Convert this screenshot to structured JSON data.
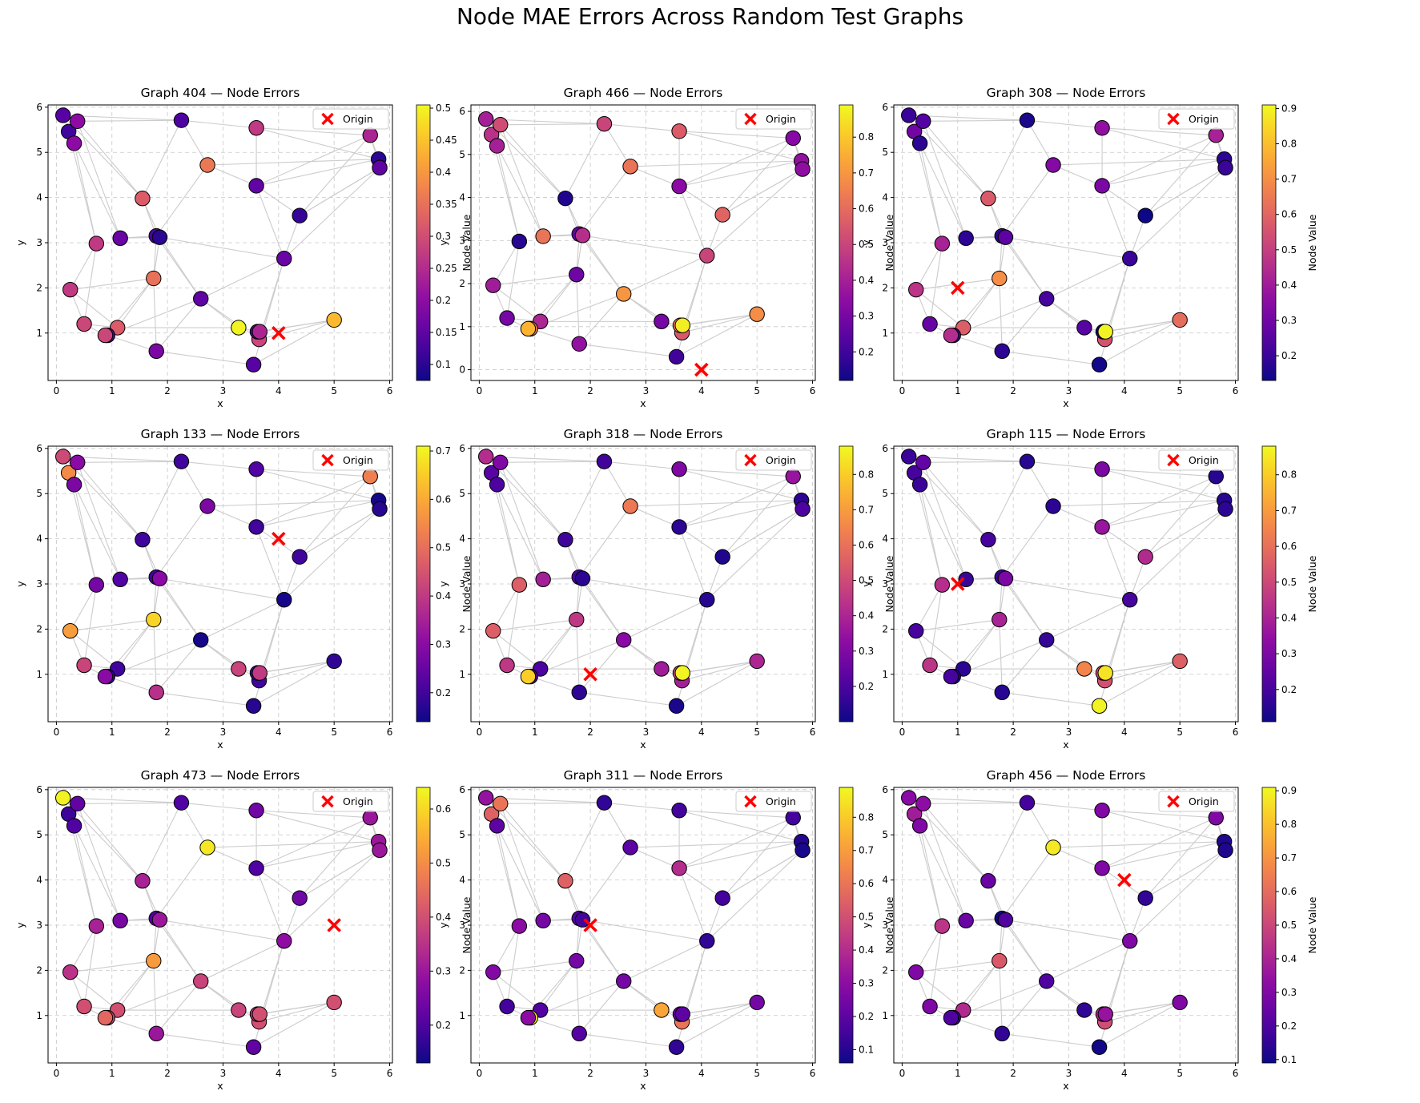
{
  "figure": {
    "title": "Node MAE Errors Across Random Test Graphs"
  },
  "colors": {
    "edge": "#cccccc",
    "grid": "#b0b0b0",
    "origin_marker": "#ff0000",
    "node_outline": "#000000",
    "colormap": "plasma"
  },
  "chart_data": [
    {
      "type": "scatter",
      "title": "Graph 404 — Node Errors",
      "xlabel": "x",
      "ylabel": "y",
      "xlim": [
        -0.15,
        6.05
      ],
      "ylim": [
        -0.05,
        6.05
      ],
      "xticks": [
        0,
        1,
        2,
        3,
        4,
        5,
        6
      ],
      "yticks": [
        1,
        2,
        3,
        4,
        5,
        6
      ],
      "grid": true,
      "legend": {
        "label": "Origin",
        "placement": "top-right"
      },
      "origin": [
        4,
        1
      ],
      "colorbar": {
        "label": "Node Value",
        "range": [
          0.075,
          0.505
        ],
        "ticks": [
          0.1,
          0.15,
          0.2,
          0.25,
          0.3,
          0.35,
          0.4,
          0.45,
          0.5
        ]
      },
      "node_values": [
        0.14,
        0.12,
        0.2,
        0.2,
        0.13,
        0.27,
        0.24,
        0.1,
        0.15,
        0.36,
        0.32,
        0.15,
        0.11,
        0.16,
        0.27,
        0.13,
        0.1,
        0.27,
        0.35,
        0.16,
        0.15,
        0.29,
        0.32,
        0.12,
        0.18,
        0.5,
        0.29,
        0.14,
        0.14,
        0.44,
        0.29,
        0.24
      ]
    },
    {
      "type": "scatter",
      "title": "Graph 466 — Node Errors",
      "xlabel": "x",
      "ylabel": "y",
      "xlim": [
        -0.15,
        6.05
      ],
      "ylim": [
        -0.25,
        6.15
      ],
      "xticks": [
        0,
        1,
        2,
        3,
        4,
        5,
        6
      ],
      "yticks": [
        0,
        1,
        2,
        3,
        4,
        5,
        6
      ],
      "grid": true,
      "legend": {
        "label": "Origin",
        "placement": "top-right"
      },
      "origin": [
        4,
        0
      ],
      "colorbar": {
        "label": "Node Value",
        "range": [
          0.12,
          0.89
        ],
        "ticks": [
          0.2,
          0.3,
          0.4,
          0.5,
          0.6,
          0.7,
          0.8
        ]
      },
      "node_values": [
        0.4,
        0.45,
        0.52,
        0.4,
        0.5,
        0.56,
        0.33,
        0.36,
        0.35,
        0.62,
        0.15,
        0.34,
        0.58,
        0.62,
        0.16,
        0.26,
        0.44,
        0.39,
        0.28,
        0.5,
        0.7,
        0.3,
        0.42,
        0.64,
        0.36,
        0.3,
        0.55,
        0.62,
        0.2,
        0.68,
        0.76,
        0.87
      ]
    },
    {
      "type": "scatter",
      "title": "Graph 308 — Node Errors",
      "xlabel": "x",
      "ylabel": "y",
      "xlim": [
        -0.15,
        6.05
      ],
      "ylim": [
        -0.05,
        6.05
      ],
      "xticks": [
        0,
        1,
        2,
        3,
        4,
        5,
        6
      ],
      "yticks": [
        1,
        2,
        3,
        4,
        5,
        6
      ],
      "grid": true,
      "legend": {
        "label": "Origin",
        "placement": "top-right"
      },
      "origin": [
        1,
        2
      ],
      "colorbar": {
        "label": "Node Value",
        "range": [
          0.13,
          0.91
        ],
        "ticks": [
          0.2,
          0.3,
          0.4,
          0.5,
          0.6,
          0.7,
          0.8,
          0.9
        ]
      },
      "node_values": [
        0.2,
        0.3,
        0.24,
        0.18,
        0.15,
        0.37,
        0.42,
        0.18,
        0.2,
        0.34,
        0.57,
        0.32,
        0.1,
        0.18,
        0.42,
        0.18,
        0.26,
        0.47,
        0.7,
        0.2,
        0.22,
        0.28,
        0.58,
        0.2,
        0.18,
        0.25,
        0.55,
        0.12,
        0.14,
        0.62,
        0.45,
        0.9
      ]
    },
    {
      "type": "scatter",
      "title": "Graph 133 — Node Errors",
      "xlabel": "x",
      "ylabel": "y",
      "xlim": [
        -0.15,
        6.05
      ],
      "ylim": [
        -0.05,
        6.05
      ],
      "xticks": [
        0,
        1,
        2,
        3,
        4,
        5,
        6
      ],
      "yticks": [
        1,
        2,
        3,
        4,
        5,
        6
      ],
      "grid": true,
      "legend": {
        "label": "Origin",
        "placement": "top-right"
      },
      "origin": [
        4,
        4
      ],
      "colorbar": {
        "label": "Node Value",
        "range": [
          0.14,
          0.71
        ],
        "ticks": [
          0.2,
          0.3,
          0.4,
          0.5,
          0.6,
          0.7
        ]
      },
      "node_values": [
        0.43,
        0.55,
        0.3,
        0.28,
        0.2,
        0.22,
        0.53,
        0.15,
        0.17,
        0.28,
        0.2,
        0.2,
        0.2,
        0.22,
        0.27,
        0.2,
        0.3,
        0.58,
        0.66,
        0.15,
        0.15,
        0.42,
        0.2,
        0.18,
        0.38,
        0.42,
        0.2,
        0.2,
        0.17,
        0.18,
        0.3,
        0.4
      ]
    },
    {
      "type": "scatter",
      "title": "Graph 318 — Node Errors",
      "xlabel": "x",
      "ylabel": "y",
      "xlim": [
        -0.15,
        6.05
      ],
      "ylim": [
        -0.05,
        6.05
      ],
      "xticks": [
        0,
        1,
        2,
        3,
        4,
        5,
        6
      ],
      "yticks": [
        1,
        2,
        3,
        4,
        5,
        6
      ],
      "grid": true,
      "legend": {
        "label": "Origin",
        "placement": "top-right"
      },
      "origin": [
        2,
        1
      ],
      "colorbar": {
        "label": "Node Value",
        "range": [
          0.1,
          0.88
        ],
        "ticks": [
          0.2,
          0.3,
          0.4,
          0.5,
          0.6,
          0.7,
          0.8
        ]
      },
      "node_values": [
        0.42,
        0.22,
        0.3,
        0.2,
        0.18,
        0.3,
        0.35,
        0.15,
        0.2,
        0.62,
        0.18,
        0.15,
        0.13,
        0.38,
        0.55,
        0.2,
        0.15,
        0.55,
        0.45,
        0.14,
        0.32,
        0.45,
        0.2,
        0.2,
        0.15,
        0.37,
        0.38,
        0.48,
        0.12,
        0.4,
        0.8,
        0.87
      ]
    },
    {
      "type": "scatter",
      "title": "Graph 115 — Node Errors",
      "xlabel": "x",
      "ylabel": "y",
      "xlim": [
        -0.15,
        6.05
      ],
      "ylim": [
        -0.05,
        6.05
      ],
      "xticks": [
        0,
        1,
        2,
        3,
        4,
        5,
        6
      ],
      "yticks": [
        1,
        2,
        3,
        4,
        5,
        6
      ],
      "grid": true,
      "legend": {
        "label": "Origin",
        "placement": "top-right"
      },
      "origin": [
        1,
        3
      ],
      "colorbar": {
        "label": "Node Value",
        "range": [
          0.11,
          0.88
        ],
        "ticks": [
          0.2,
          0.3,
          0.4,
          0.5,
          0.6,
          0.7,
          0.8
        ]
      },
      "node_values": [
        0.18,
        0.2,
        0.25,
        0.18,
        0.15,
        0.3,
        0.15,
        0.15,
        0.16,
        0.16,
        0.2,
        0.36,
        0.42,
        0.18,
        0.43,
        0.18,
        0.3,
        0.2,
        0.4,
        0.2,
        0.17,
        0.45,
        0.16,
        0.15,
        0.15,
        0.65,
        0.52,
        0.5,
        0.87,
        0.56,
        0.2,
        0.84
      ]
    },
    {
      "type": "scatter",
      "title": "Graph 473 — Node Errors",
      "xlabel": "x",
      "ylabel": "y",
      "xlim": [
        -0.15,
        6.05
      ],
      "ylim": [
        -0.05,
        6.05
      ],
      "xticks": [
        0,
        1,
        2,
        3,
        4,
        5,
        6
      ],
      "yticks": [
        1,
        2,
        3,
        4,
        5,
        6
      ],
      "grid": true,
      "legend": {
        "label": "Origin",
        "placement": "top-right"
      },
      "origin": [
        5,
        3
      ],
      "colorbar": {
        "label": "Node Value",
        "range": [
          0.13,
          0.64
        ],
        "ticks": [
          0.2,
          0.3,
          0.4,
          0.5,
          0.6
        ]
      },
      "node_values": [
        0.63,
        0.18,
        0.22,
        0.2,
        0.2,
        0.24,
        0.3,
        0.3,
        0.3,
        0.62,
        0.32,
        0.2,
        0.24,
        0.25,
        0.32,
        0.2,
        0.3,
        0.35,
        0.52,
        0.28,
        0.38,
        0.4,
        0.4,
        0.38,
        0.3,
        0.38,
        0.4,
        0.35,
        0.22,
        0.4,
        0.44,
        0.4
      ]
    },
    {
      "type": "scatter",
      "title": "Graph 311 — Node Errors",
      "xlabel": "x",
      "ylabel": "y",
      "xlim": [
        -0.15,
        6.05
      ],
      "ylim": [
        -0.05,
        6.05
      ],
      "xticks": [
        0,
        1,
        2,
        3,
        4,
        5,
        6
      ],
      "yticks": [
        1,
        2,
        3,
        4,
        5,
        6
      ],
      "grid": true,
      "legend": {
        "label": "Origin",
        "placement": "top-right"
      },
      "origin": [
        2,
        3
      ],
      "colorbar": {
        "label": "Node Value",
        "range": [
          0.06,
          0.89
        ],
        "ticks": [
          0.1,
          0.2,
          0.3,
          0.4,
          0.5,
          0.6,
          0.7,
          0.8
        ]
      },
      "node_values": [
        0.32,
        0.55,
        0.6,
        0.2,
        0.12,
        0.15,
        0.15,
        0.1,
        0.08,
        0.2,
        0.55,
        0.4,
        0.15,
        0.25,
        0.3,
        0.18,
        0.15,
        0.28,
        0.25,
        0.12,
        0.25,
        0.15,
        0.18,
        0.88,
        0.18,
        0.72,
        0.6,
        0.22,
        0.12,
        0.25,
        0.3,
        0.2
      ]
    },
    {
      "type": "scatter",
      "title": "Graph 456 — Node Errors",
      "xlabel": "x",
      "ylabel": "y",
      "xlim": [
        -0.15,
        6.05
      ],
      "ylim": [
        -0.05,
        6.05
      ],
      "xticks": [
        0,
        1,
        2,
        3,
        4,
        5,
        6
      ],
      "yticks": [
        1,
        2,
        3,
        4,
        5,
        6
      ],
      "grid": true,
      "legend": {
        "label": "Origin",
        "placement": "top-right"
      },
      "origin": [
        4,
        4
      ],
      "colorbar": {
        "label": "Node Value",
        "range": [
          0.09,
          0.91
        ],
        "ticks": [
          0.1,
          0.2,
          0.3,
          0.4,
          0.5,
          0.6,
          0.7,
          0.8,
          0.9
        ]
      },
      "node_values": [
        0.32,
        0.38,
        0.33,
        0.3,
        0.18,
        0.3,
        0.3,
        0.12,
        0.12,
        0.88,
        0.25,
        0.3,
        0.15,
        0.25,
        0.45,
        0.1,
        0.2,
        0.3,
        0.55,
        0.3,
        0.2,
        0.3,
        0.42,
        0.15,
        0.15,
        0.15,
        0.52,
        0.42,
        0.1,
        0.3,
        0.2,
        0.35
      ]
    }
  ]
}
